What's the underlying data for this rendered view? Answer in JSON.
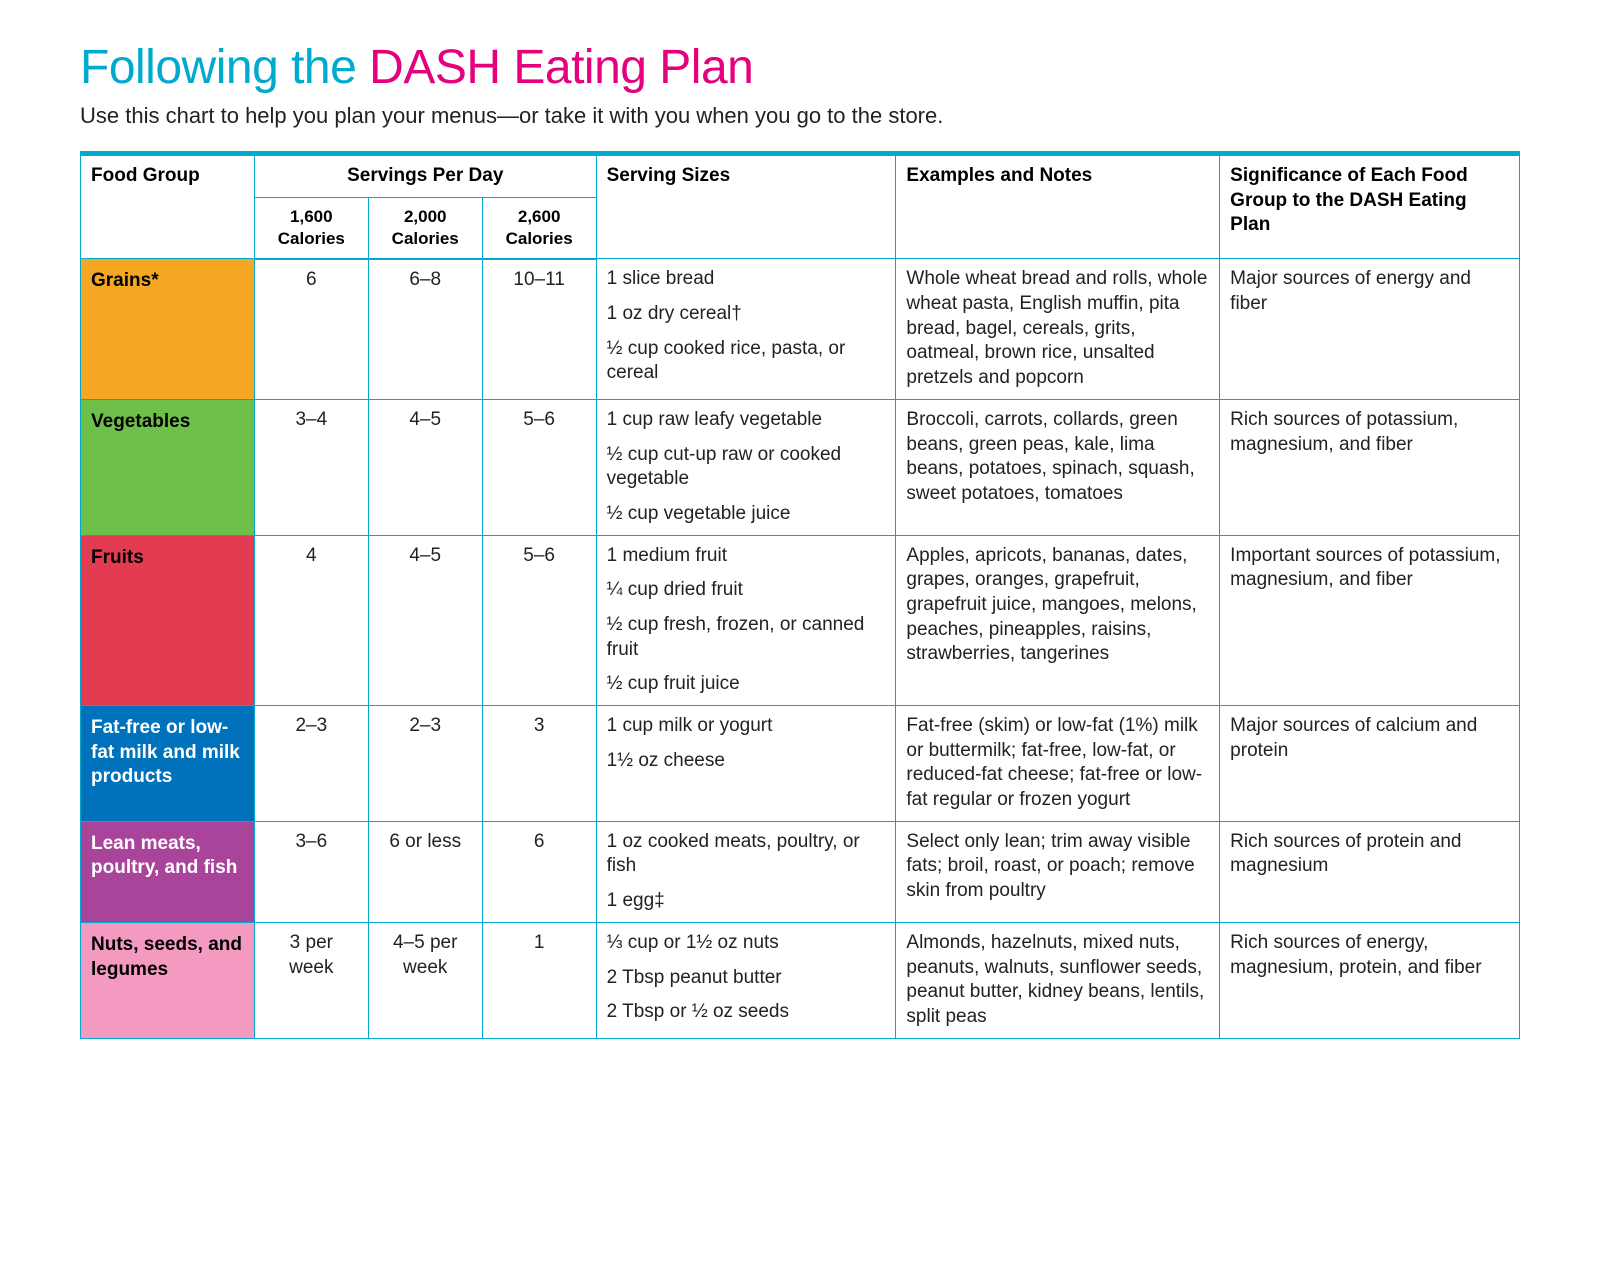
{
  "title": {
    "part1": "Following the ",
    "part2": "DASH Eating Plan",
    "color1": "#00a9ce",
    "color2": "#e5007e"
  },
  "subtitle": "Use this chart to help you plan your menus—or take it with you when you go to the store.",
  "border_color": "#00a9ce",
  "columns": {
    "food_group": "Food Group",
    "servings": "Servings Per Day",
    "cal1": "1,600 Calories",
    "cal2": "2,000 Calories",
    "cal3": "2,600 Calories",
    "sizes": "Serving Sizes",
    "examples": "Examples and Notes",
    "significance": "Significance of Each Food Group to the DASH Eating Plan"
  },
  "col_widths": {
    "group": "145px",
    "serv": "95px",
    "sizes": "250px",
    "examples": "270px",
    "sig": "250px"
  },
  "rows": [
    {
      "label": "Grains*",
      "label_bg": "#f5a623",
      "label_fg": "#000000",
      "s1": "6",
      "s2": "6–8",
      "s3": "10–11",
      "sizes": [
        "1 slice bread",
        "1 oz dry cereal†",
        "½ cup cooked rice, pasta, or cereal"
      ],
      "examples": "Whole wheat bread and rolls, whole wheat pasta, English muffin, pita bread, bagel, cereals, grits, oatmeal, brown rice, unsalted pretzels and popcorn",
      "sig": "Major sources of energy and fiber"
    },
    {
      "label": "Vegetables",
      "label_bg": "#6fbf4b",
      "label_fg": "#000000",
      "s1": "3–4",
      "s2": "4–5",
      "s3": "5–6",
      "sizes": [
        "1 cup raw leafy vegetable",
        "½ cup cut-up raw or cooked vegetable",
        "½ cup vegetable juice"
      ],
      "examples": "Broccoli, carrots, collards, green beans, green peas, kale, lima beans, potatoes, spinach, squash, sweet potatoes, tomatoes",
      "sig": "Rich sources of potassium, magnesium, and fiber"
    },
    {
      "label": "Fruits",
      "label_bg": "#e23b52",
      "label_fg": "#000000",
      "s1": "4",
      "s2": "4–5",
      "s3": "5–6",
      "sizes": [
        "1 medium fruit",
        "¼ cup dried fruit",
        "½ cup fresh, frozen, or canned fruit",
        "½ cup fruit juice"
      ],
      "examples": "Apples, apricots, bananas, dates, grapes, oranges, grapefruit, grapefruit juice, mangoes, melons, peaches, pineapples, raisins, strawberries, tangerines",
      "sig": "Important sources of potassium, magnesium, and fiber"
    },
    {
      "label": "Fat-free or low-fat milk and milk products",
      "label_bg": "#0072bc",
      "label_fg": "#ffffff",
      "s1": "2–3",
      "s2": "2–3",
      "s3": "3",
      "sizes": [
        "1 cup milk or yogurt",
        "1½ oz cheese"
      ],
      "examples": "Fat-free (skim) or low-fat (1%) milk or buttermilk; fat-free, low-fat, or reduced-fat cheese; fat-free or low-fat regular or frozen yogurt",
      "sig": "Major sources of calcium and protein"
    },
    {
      "label": "Lean meats, poultry, and fish",
      "label_bg": "#a9449b",
      "label_fg": "#ffffff",
      "s1": "3–6",
      "s2": "6 or less",
      "s3": "6",
      "sizes": [
        "1 oz cooked meats, poultry, or fish",
        "1 egg‡"
      ],
      "examples": "Select only lean; trim away visible fats; broil, roast, or poach; remove skin from poultry",
      "sig": "Rich sources of protein and magnesium"
    },
    {
      "label": "Nuts, seeds, and legumes",
      "label_bg": "#f49ac1",
      "label_fg": "#000000",
      "s1": "3 per week",
      "s2": "4–5 per week",
      "s3": "1",
      "sizes": [
        "⅓ cup or 1½ oz nuts",
        "2 Tbsp peanut butter",
        "2 Tbsp or ½ oz seeds"
      ],
      "examples": "Almonds, hazelnuts, mixed nuts, peanuts, walnuts, sunflower seeds, peanut butter, kidney beans, lentils, split peas",
      "sig": "Rich sources of energy, magnesium, protein, and fiber"
    }
  ]
}
